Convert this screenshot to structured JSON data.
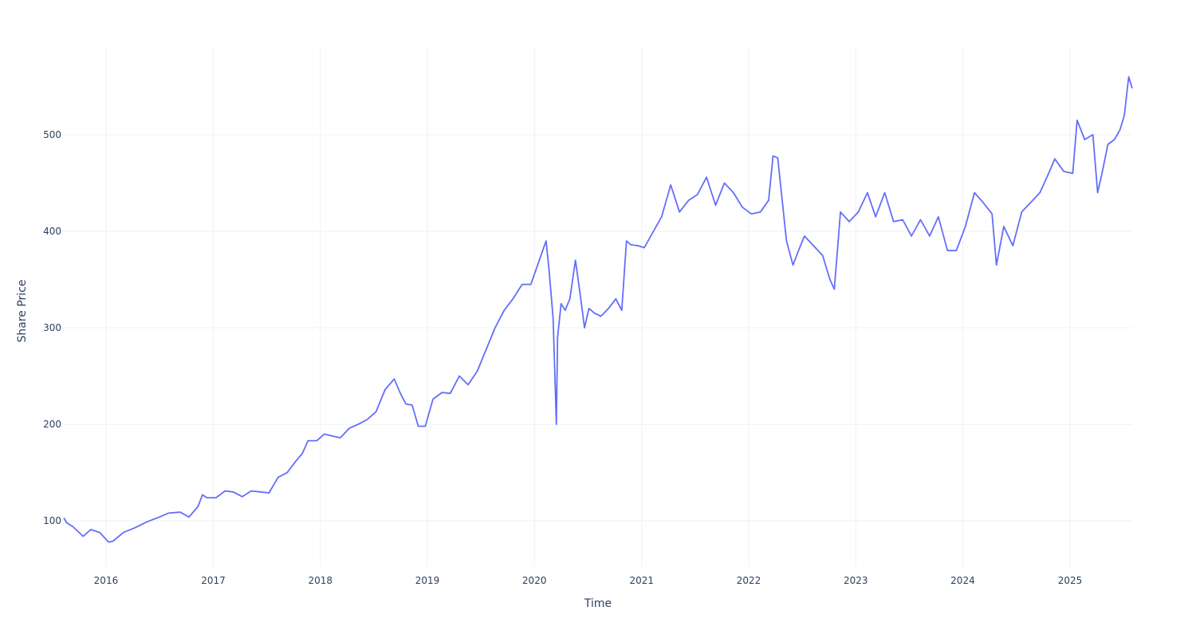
{
  "chart_data": {
    "type": "line",
    "xlabel": "Time",
    "ylabel": "Share Price",
    "xlim": [
      "2015-08-10",
      "2025-08-01"
    ],
    "ylim": [
      53,
      590
    ],
    "x_ticks": [
      "2016",
      "2017",
      "2018",
      "2019",
      "2020",
      "2021",
      "2022",
      "2023",
      "2024",
      "2025"
    ],
    "y_ticks": [
      100,
      200,
      300,
      400,
      500
    ],
    "grid": true,
    "legend": "none",
    "line_color": "#636efa",
    "grid_color": "#ebf0f8",
    "series": [
      {
        "x": [
          "2015-08-10",
          "2015-08-20",
          "2015-09-10",
          "2015-10-15",
          "2015-11-10",
          "2015-12-10",
          "2016-01-10",
          "2016-01-25",
          "2016-03-01",
          "2016-04-10",
          "2016-05-20",
          "2016-07-01",
          "2016-08-01",
          "2016-09-10",
          "2016-10-10",
          "2016-11-10",
          "2016-11-25",
          "2016-12-10",
          "2017-01-10",
          "2017-02-10",
          "2017-03-10",
          "2017-04-10",
          "2017-05-10",
          "2017-06-10",
          "2017-07-10",
          "2017-08-10",
          "2017-09-10",
          "2017-10-10",
          "2017-11-01",
          "2017-11-20",
          "2017-12-20",
          "2018-01-15",
          "2018-02-10",
          "2018-03-10",
          "2018-04-10",
          "2018-05-10",
          "2018-06-10",
          "2018-07-10",
          "2018-08-10",
          "2018-09-10",
          "2018-10-01",
          "2018-10-20",
          "2018-11-10",
          "2018-12-01",
          "2018-12-25",
          "2019-01-20",
          "2019-02-20",
          "2019-03-20",
          "2019-04-20",
          "2019-05-20",
          "2019-06-20",
          "2019-07-20",
          "2019-08-20",
          "2019-09-20",
          "2019-10-20",
          "2019-11-20",
          "2019-12-20",
          "2020-01-20",
          "2020-02-10",
          "2020-02-20",
          "2020-03-05",
          "2020-03-16",
          "2020-03-20",
          "2020-04-01",
          "2020-04-15",
          "2020-05-01",
          "2020-05-20",
          "2020-06-05",
          "2020-06-20",
          "2020-07-05",
          "2020-07-25",
          "2020-08-15",
          "2020-09-10",
          "2020-10-05",
          "2020-10-25",
          "2020-11-10",
          "2020-11-25",
          "2020-12-20",
          "2021-01-10",
          "2021-02-10",
          "2021-03-10",
          "2021-04-10",
          "2021-05-10",
          "2021-06-10",
          "2021-07-10",
          "2021-08-10",
          "2021-09-10",
          "2021-10-10",
          "2021-11-10",
          "2021-12-10",
          "2022-01-10",
          "2022-02-10",
          "2022-03-10",
          "2022-03-25",
          "2022-04-10",
          "2022-05-10",
          "2022-06-01",
          "2022-06-20",
          "2022-07-10",
          "2022-08-10",
          "2022-09-10",
          "2022-10-05",
          "2022-10-20",
          "2022-11-10",
          "2022-12-10",
          "2023-01-10",
          "2023-02-10",
          "2023-03-10",
          "2023-04-10",
          "2023-05-10",
          "2023-06-10",
          "2023-07-10",
          "2023-08-10",
          "2023-09-10",
          "2023-10-10",
          "2023-11-10",
          "2023-12-10",
          "2024-01-10",
          "2024-02-10",
          "2024-03-10",
          "2024-04-10",
          "2024-04-25",
          "2024-05-20",
          "2024-06-20",
          "2024-07-20",
          "2024-08-20",
          "2024-09-20",
          "2024-10-20",
          "2024-11-10",
          "2024-12-10",
          "2025-01-10",
          "2025-01-25",
          "2025-02-20",
          "2025-03-20",
          "2025-04-05",
          "2025-04-20",
          "2025-05-10",
          "2025-06-01",
          "2025-06-20",
          "2025-07-05",
          "2025-07-20",
          "2025-08-01"
        ],
        "y": [
          103,
          98,
          94,
          84,
          91,
          88,
          78,
          79,
          88,
          93,
          99,
          104,
          108,
          109,
          104,
          115,
          127,
          124,
          124,
          131,
          130,
          125,
          131,
          130,
          129,
          145,
          150,
          162,
          170,
          183,
          183,
          190,
          188,
          186,
          196,
          200,
          205,
          213,
          236,
          247,
          232,
          221,
          220,
          198,
          198,
          226,
          233,
          232,
          250,
          241,
          255,
          277,
          300,
          318,
          330,
          345,
          345,
          372,
          390,
          360,
          310,
          200,
          290,
          325,
          318,
          330,
          370,
          335,
          300,
          320,
          315,
          312,
          320,
          330,
          318,
          390,
          386,
          385,
          383,
          400,
          415,
          448,
          420,
          432,
          438,
          456,
          427,
          450,
          440,
          425,
          418,
          420,
          432,
          478,
          476,
          390,
          365,
          380,
          395,
          385,
          375,
          350,
          340,
          420,
          410,
          420,
          440,
          415,
          440,
          410,
          412,
          395,
          412,
          395,
          415,
          380,
          380,
          405,
          440,
          430,
          418,
          365,
          405,
          385,
          420,
          430,
          440,
          460,
          475,
          462,
          460,
          515,
          495,
          500,
          440,
          460,
          490,
          495,
          505,
          520,
          560,
          548
        ]
      }
    ]
  }
}
